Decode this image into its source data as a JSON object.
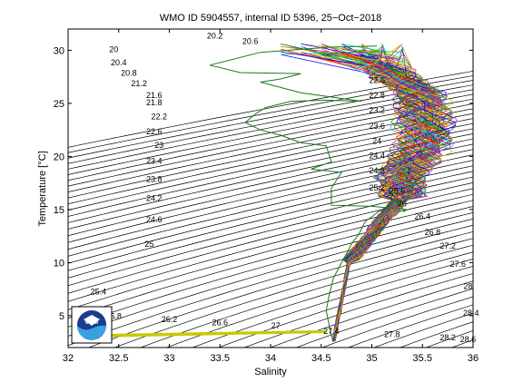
{
  "chart_data": {
    "type": "line",
    "title": "WMO ID 5904557, internal ID 5396, 25−Oct−2018",
    "xlabel": "Salinity",
    "ylabel": "Temperature [°C]",
    "xlim": [
      32,
      36
    ],
    "ylim": [
      2,
      32
    ],
    "xticks": [
      "32",
      "32.5",
      "33",
      "33.5",
      "34",
      "34.5",
      "35",
      "35.5",
      "36"
    ],
    "yticks": [
      "5",
      "10",
      "15",
      "20",
      "25",
      "30"
    ],
    "grid": false,
    "isopycnals": {
      "start": 20.0,
      "step": 0.2,
      "count": 45,
      "labels": [
        {
          "text": "20",
          "s": 32.45,
          "t": 29.8
        },
        {
          "text": "20.2",
          "s": 33.45,
          "t": 31.1
        },
        {
          "text": "20.6",
          "s": 33.8,
          "t": 30.6
        },
        {
          "text": "20.4",
          "s": 32.5,
          "t": 28.6
        },
        {
          "text": "20.8",
          "s": 32.6,
          "t": 27.6
        },
        {
          "text": "21.2",
          "s": 32.7,
          "t": 26.6
        },
        {
          "text": "21.6",
          "s": 32.85,
          "t": 25.5
        },
        {
          "text": "21.8",
          "s": 32.85,
          "t": 24.8
        },
        {
          "text": "22.2",
          "s": 32.9,
          "t": 23.5
        },
        {
          "text": "22.6",
          "s": 32.85,
          "t": 22.1
        },
        {
          "text": "23",
          "s": 32.9,
          "t": 20.8
        },
        {
          "text": "23.4",
          "s": 32.85,
          "t": 19.3
        },
        {
          "text": "23.8",
          "s": 32.85,
          "t": 17.6
        },
        {
          "text": "24.2",
          "s": 32.85,
          "t": 15.8
        },
        {
          "text": "24.6",
          "s": 32.85,
          "t": 13.8
        },
        {
          "text": "25",
          "s": 32.8,
          "t": 11.5
        },
        {
          "text": "25.4",
          "s": 32.3,
          "t": 7.0
        },
        {
          "text": "25.8",
          "s": 32.45,
          "t": 4.7
        },
        {
          "text": "26.2",
          "s": 33.0,
          "t": 4.4
        },
        {
          "text": "26.6",
          "s": 33.5,
          "t": 4.1
        },
        {
          "text": "27",
          "s": 34.05,
          "t": 3.8
        },
        {
          "text": "27.4",
          "s": 34.6,
          "t": 3.3
        },
        {
          "text": "27.8",
          "s": 35.2,
          "t": 3.0
        },
        {
          "text": "28.2",
          "s": 35.75,
          "t": 2.7
        },
        {
          "text": "28.6",
          "s": 35.95,
          "t": 2.5
        },
        {
          "text": "22.6",
          "s": 35.05,
          "t": 26.9
        },
        {
          "text": "22.8",
          "s": 35.05,
          "t": 25.5
        },
        {
          "text": "23.2",
          "s": 35.05,
          "t": 24.1
        },
        {
          "text": "23.6",
          "s": 35.05,
          "t": 22.6
        },
        {
          "text": "24",
          "s": 35.05,
          "t": 21.2
        },
        {
          "text": "24.4",
          "s": 35.05,
          "t": 19.8
        },
        {
          "text": "24.8",
          "s": 35.05,
          "t": 18.4
        },
        {
          "text": "25.2",
          "s": 35.05,
          "t": 16.8
        },
        {
          "text": "25.6",
          "s": 35.25,
          "t": 16.5
        },
        {
          "text": "26",
          "s": 35.3,
          "t": 15.3
        },
        {
          "text": "26.4",
          "s": 35.5,
          "t": 14.1
        },
        {
          "text": "26.8",
          "s": 35.6,
          "t": 12.6
        },
        {
          "text": "27.2",
          "s": 35.75,
          "t": 11.3
        },
        {
          "text": "27.6",
          "s": 35.85,
          "t": 9.6
        },
        {
          "text": "28",
          "s": 35.95,
          "t": 7.5
        },
        {
          "text": "28.4",
          "s": 35.98,
          "t": 5.0
        }
      ]
    },
    "highlight_profile": {
      "color": "#1a7a1a",
      "s": [
        34.62,
        34.58,
        34.55,
        34.58,
        34.62,
        34.7,
        34.76,
        34.8,
        34.86,
        34.9,
        34.93,
        34.95,
        35.0,
        35.05,
        35.1,
        35.15,
        35.2,
        35.25,
        35.3,
        35.32,
        35.34,
        35.0,
        34.6,
        34.6,
        34.7,
        34.4,
        34.6,
        34.55,
        34.3,
        34.1,
        33.9,
        33.75,
        33.85,
        33.95,
        34.2,
        34.55,
        34.9,
        34.3,
        33.9,
        34.1,
        34.3,
        33.7,
        33.4,
        33.9,
        34.6,
        35.05
      ],
      "t": [
        2.5,
        4.0,
        5.5,
        7.0,
        8.5,
        10.0,
        11.0,
        11.8,
        12.5,
        13.2,
        13.8,
        14.0,
        14.3,
        14.7,
        15.0,
        15.3,
        15.6,
        15.8,
        15.2,
        14.8,
        15.0,
        15.3,
        15.4,
        17.0,
        18.5,
        18.8,
        19.5,
        21.0,
        21.3,
        22.0,
        22.5,
        23.2,
        24.0,
        24.6,
        25.2,
        25.3,
        25.2,
        26.0,
        27.0,
        27.3,
        27.8,
        27.9,
        28.6,
        29.8,
        30.3,
        30.4
      ]
    },
    "series_colors": [
      "#0000ff",
      "#00aa00",
      "#ff0000",
      "#00bfbf",
      "#bf00bf",
      "#bfbf00",
      "#404040",
      "#ff8800"
    ],
    "surface_segments": {
      "color": "#c8c800",
      "s": [
        32.38,
        34.55
      ],
      "t": [
        3.0,
        3.4
      ]
    },
    "logo": {
      "text": "NOAA"
    }
  }
}
